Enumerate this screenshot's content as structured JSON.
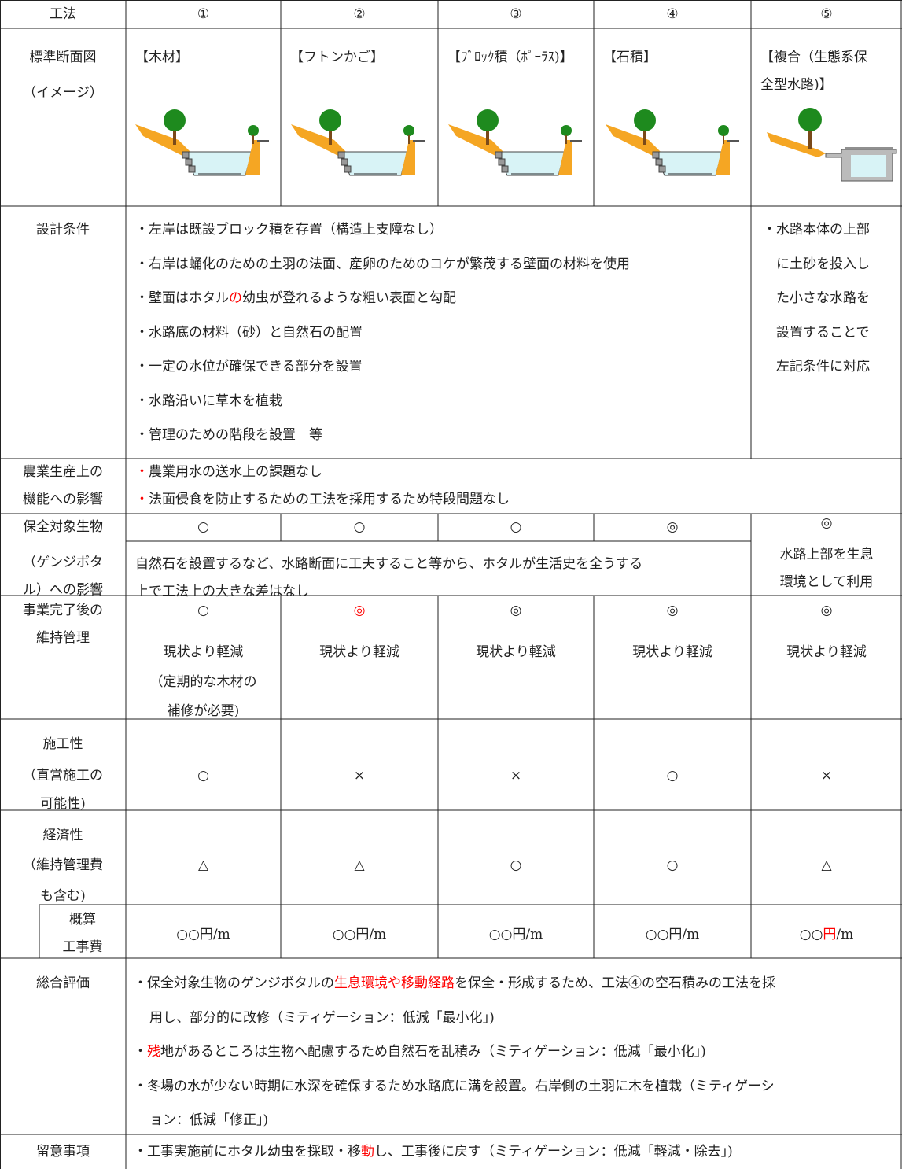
{
  "header": [
    "工法",
    "①",
    "②",
    "③",
    "④",
    "⑤"
  ],
  "standard_section": {
    "label": [
      "標準断面図",
      "（イメージ）"
    ],
    "methods": [
      [
        "【木材】"
      ],
      [
        "【フトンかご】"
      ],
      [
        "【ﾌﾞﾛｯｸ積（ﾎﾟｰﾗｽ)】"
      ],
      [
        "【石積】"
      ],
      [
        "【複合（生態系保",
        "全型水路)】"
      ]
    ]
  },
  "design_conditions": {
    "label": "設計条件",
    "common": [
      "・左岸は既設ブロック積を存置（構造上支障なし）",
      "・右岸は蛹化のための土羽の法面、産卵のためのコケが繁茂する壁面の材料を使用",
      [
        "・壁面はホタル",
        {
          "text": "の",
          "color": "red"
        },
        "幼虫が登れるような粗い表面と勾配"
      ],
      "・水路底の材料（砂）と自然石の配置",
      "・一定の水位が確保できる部分を設置",
      "・水路沿いに草木を植栽",
      "・管理のための階段を設置　等"
    ],
    "method5": [
      "・水路本体の上部",
      "に土砂を投入し",
      "た小さな水路を",
      "設置することで",
      "左記条件に対応"
    ]
  },
  "agricultural_impact": {
    "label": [
      "農業生産上の",
      "機能への影響"
    ],
    "lines": [
      [
        {
          "text": "・",
          "color": "red"
        },
        "農業用水の送水上の課題なし"
      ],
      [
        {
          "text": "・",
          "color": "red"
        },
        "法面侵食を防止するための工法を採用するため特段問題なし"
      ]
    ]
  },
  "species_impact": {
    "label": [
      "保全対象生物",
      "（ゲンジボタ",
      "ル）への影響"
    ],
    "ratings": [
      "○",
      "○",
      "○",
      "◎",
      "◎"
    ],
    "common": [
      "自然石を設置するなど、水路断面に工夫すること等から、ホタルが生活史を全うする",
      "上で工法上の大きな差はなし"
    ],
    "method5": [
      "水路上部を生息",
      "環境として利用"
    ]
  },
  "maintenance": {
    "label": [
      "事業完了後の",
      "維持管理"
    ],
    "methods": [
      [
        "○",
        "現状より軽減",
        "（定期的な木材の",
        "補修が必要)"
      ],
      [
        [
          {
            "text": "◎",
            "color": "red"
          }
        ],
        "現状より軽減"
      ],
      [
        "◎",
        "現状より軽減"
      ],
      [
        "◎",
        "現状より軽減"
      ],
      [
        "◎",
        "現状より軽減"
      ]
    ]
  },
  "workability": {
    "label": [
      "施工性",
      "（直営施工の",
      "可能性)"
    ],
    "ratings": [
      "○",
      "×",
      "×",
      "○",
      "×"
    ]
  },
  "economy": {
    "label": [
      "経済性",
      "（維持管理費",
      "も含む)"
    ],
    "ratings": [
      "△",
      "△",
      "○",
      "○",
      "△"
    ]
  },
  "cost": {
    "label": [
      "概算",
      "工事費"
    ],
    "values": [
      "○○円/m",
      "○○円/m",
      "○○円/m",
      "○○円/m",
      [
        "○○",
        {
          "text": "円",
          "color": "red"
        },
        "/m"
      ]
    ]
  },
  "overall": {
    "label": "総合評価",
    "lines": [
      [
        "・保全対象生物のゲンジボタルの",
        {
          "text": "生息環境や移動経路",
          "color": "red"
        },
        "を保全・形成するため、工法④の空石積みの工法を採"
      ],
      "用し、部分的に改修（ミティゲーション：低減「最小化」)",
      [
        "・",
        {
          "text": "残",
          "color": "red"
        },
        "地があるところは生物へ配慮するため自然石を乱積み（ミティゲーション：低減「最小化」)"
      ],
      "・冬場の水が少ない時期に水深を確保するため水路底に溝を設置。右岸側の土羽に木を植栽（ミティゲーシ",
      "ョン：低減「修正」)"
    ]
  },
  "notes": {
    "label": "留意事項",
    "lines": [
      [
        "・工事実施前にホタル幼虫を採取・移",
        {
          "text": "動",
          "color": "red"
        },
        "し、工事後に戻す（ミティゲーション：低減「軽減・除去」)"
      ]
    ]
  }
}
